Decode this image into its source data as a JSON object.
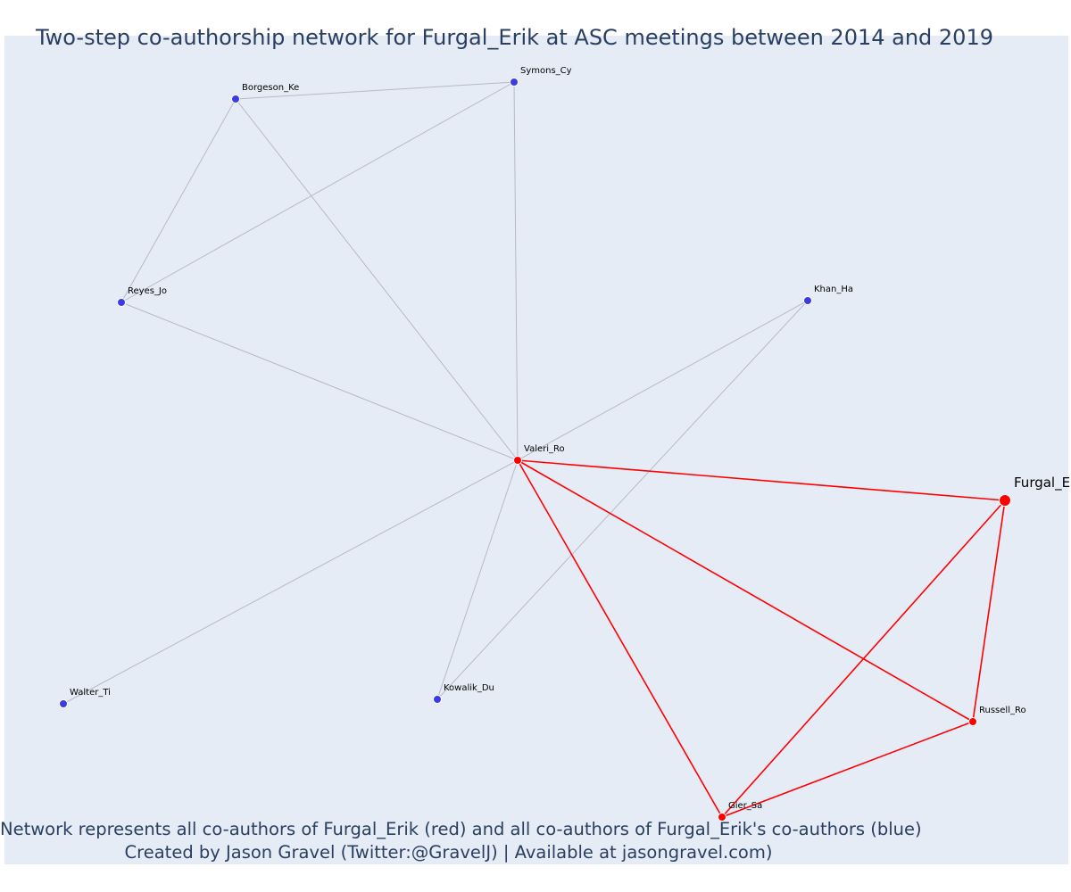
{
  "title": "Two-step co-authorship network for Furgal_Erik at ASC meetings between 2014 and 2019",
  "captions": [
    "Network represents all co-authors of Furgal_Erik (red) and all co-authors of Furgal_Erik's co-authors (blue)",
    "Created by Jason Gravel (Twitter:@GravelJ) | Available at jasongravel.com)"
  ],
  "colors": {
    "background": "#e5ecf6",
    "red": "#ff0000",
    "blue": "#3b3be6",
    "gray_edge": "#b7b9c9",
    "text": "#2a3f5f"
  },
  "network": {
    "nodes": [
      {
        "id": "Furgal_E",
        "label": "Furgal_E",
        "group": "focal"
      },
      {
        "id": "Valeri_Ro",
        "label": "Valeri_Ro",
        "group": "coauthor"
      },
      {
        "id": "Gier_Sa",
        "label": "Gier_Sa",
        "group": "coauthor"
      },
      {
        "id": "Russell_Ro",
        "label": "Russell_Ro",
        "group": "coauthor"
      },
      {
        "id": "Symons_Cy",
        "label": "Symons_Cy",
        "group": "second"
      },
      {
        "id": "Borgeson_Ke",
        "label": "Borgeson_Ke",
        "group": "second"
      },
      {
        "id": "Reyes_Jo",
        "label": "Reyes_Jo",
        "group": "second"
      },
      {
        "id": "Khan_Ha",
        "label": "Khan_Ha",
        "group": "second"
      },
      {
        "id": "Walter_Ti",
        "label": "Walter_Ti",
        "group": "second"
      },
      {
        "id": "Kowalik_Du",
        "label": "Kowalik_Du",
        "group": "second"
      }
    ],
    "edges": [
      {
        "source": "Valeri_Ro",
        "target": "Furgal_E",
        "type": "red"
      },
      {
        "source": "Gier_Sa",
        "target": "Furgal_E",
        "type": "red"
      },
      {
        "source": "Russell_Ro",
        "target": "Furgal_E",
        "type": "red"
      },
      {
        "source": "Valeri_Ro",
        "target": "Gier_Sa",
        "type": "red"
      },
      {
        "source": "Valeri_Ro",
        "target": "Russell_Ro",
        "type": "red"
      },
      {
        "source": "Gier_Sa",
        "target": "Russell_Ro",
        "type": "red"
      },
      {
        "source": "Borgeson_Ke",
        "target": "Symons_Cy",
        "type": "gray"
      },
      {
        "source": "Borgeson_Ke",
        "target": "Reyes_Jo",
        "type": "gray"
      },
      {
        "source": "Borgeson_Ke",
        "target": "Valeri_Ro",
        "type": "gray"
      },
      {
        "source": "Symons_Cy",
        "target": "Reyes_Jo",
        "type": "gray"
      },
      {
        "source": "Symons_Cy",
        "target": "Valeri_Ro",
        "type": "gray"
      },
      {
        "source": "Reyes_Jo",
        "target": "Valeri_Ro",
        "type": "gray"
      },
      {
        "source": "Khan_Ha",
        "target": "Valeri_Ro",
        "type": "gray"
      },
      {
        "source": "Khan_Ha",
        "target": "Kowalik_Du",
        "type": "gray"
      },
      {
        "source": "Walter_Ti",
        "target": "Valeri_Ro",
        "type": "gray"
      },
      {
        "source": "Kowalik_Du",
        "target": "Valeri_Ro",
        "type": "gray"
      }
    ]
  }
}
